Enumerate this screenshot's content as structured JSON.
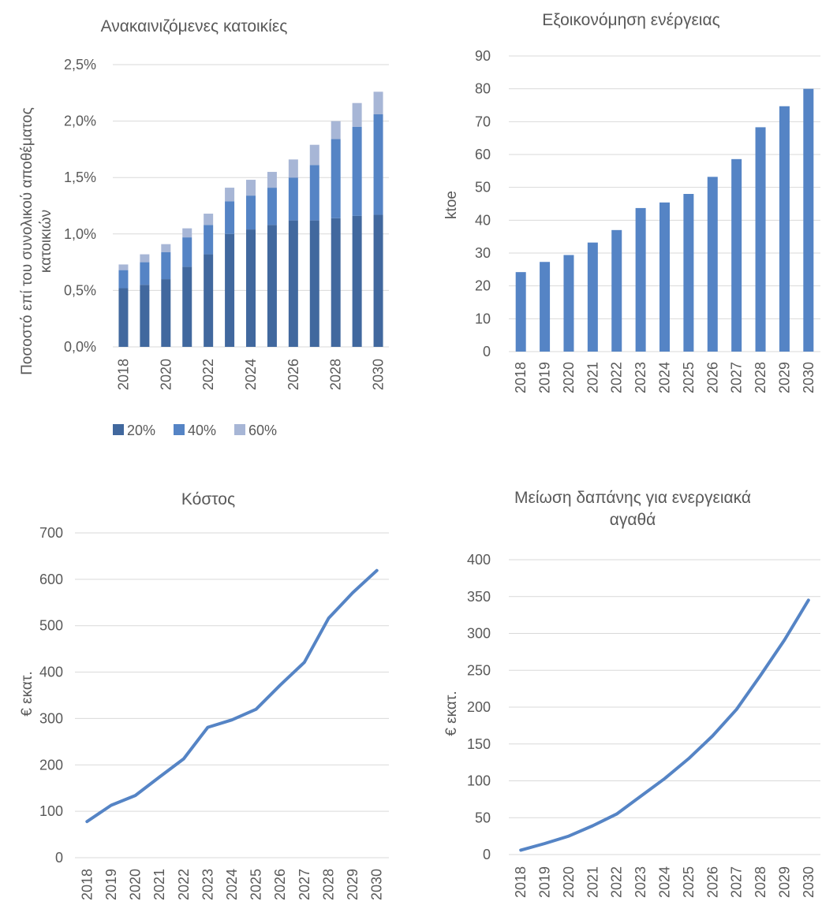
{
  "chart_data": [
    {
      "type": "bar",
      "stacked": true,
      "title": "Ανακαινιζόμενες κατοικίες",
      "xlabel": "",
      "ylabel": "Ποσοστό επί του συνολικού αποθέματος κατοικιών",
      "ylabel_lines": [
        "Ποσοστό επί του συνολικού αποθέματος",
        "κατοικιών"
      ],
      "categories": [
        "2018",
        "2019",
        "2020",
        "2021",
        "2022",
        "2023",
        "2024",
        "2025",
        "2026",
        "2027",
        "2028",
        "2029",
        "2030"
      ],
      "x_tick_labels": [
        "2018",
        "",
        "2020",
        "",
        "2022",
        "",
        "2024",
        "",
        "2026",
        "",
        "2028",
        "",
        "2030"
      ],
      "ylim": [
        0,
        2.5
      ],
      "y_ticks": [
        0,
        0.5,
        1.0,
        1.5,
        2.0,
        2.5
      ],
      "y_tick_labels": [
        "0,0%",
        "0,5%",
        "1,0%",
        "1,5%",
        "2,0%",
        "2,5%"
      ],
      "grid": true,
      "legend_position": "bottom-left",
      "series": [
        {
          "name": "20%",
          "color": "#41689e",
          "values": [
            0.52,
            0.55,
            0.6,
            0.71,
            0.82,
            1.0,
            1.04,
            1.08,
            1.12,
            1.12,
            1.14,
            1.16,
            1.17
          ]
        },
        {
          "name": "40%",
          "color": "#5584c5",
          "values": [
            0.16,
            0.2,
            0.24,
            0.26,
            0.26,
            0.29,
            0.3,
            0.33,
            0.38,
            0.49,
            0.7,
            0.79,
            0.89
          ]
        },
        {
          "name": "60%",
          "color": "#a7b6d6",
          "values": [
            0.05,
            0.07,
            0.07,
            0.08,
            0.1,
            0.12,
            0.14,
            0.14,
            0.16,
            0.18,
            0.16,
            0.21,
            0.2
          ]
        }
      ]
    },
    {
      "type": "bar",
      "title": "Εξοικονόμηση ενέργειας",
      "xlabel": "",
      "ylabel": "ktoe",
      "categories": [
        "2018",
        "2019",
        "2020",
        "2021",
        "2022",
        "2023",
        "2024",
        "2025",
        "2026",
        "2027",
        "2028",
        "2029",
        "2030"
      ],
      "ylim": [
        0,
        90
      ],
      "y_ticks": [
        0,
        10,
        20,
        30,
        40,
        50,
        60,
        70,
        80,
        90
      ],
      "y_tick_labels": [
        "0",
        "10",
        "20",
        "30",
        "40",
        "50",
        "60",
        "70",
        "80",
        "90"
      ],
      "grid": true,
      "series": [
        {
          "name": "",
          "color": "#5584c5",
          "values": [
            24.2,
            27.3,
            29.4,
            33.2,
            37.0,
            43.7,
            45.4,
            48.0,
            53.2,
            58.6,
            68.3,
            74.7,
            80.0
          ]
        }
      ]
    },
    {
      "type": "line",
      "title": "Κόστος",
      "xlabel": "",
      "ylabel": "€ εκατ.",
      "categories": [
        "2018",
        "2019",
        "2020",
        "2021",
        "2022",
        "2023",
        "2024",
        "2025",
        "2026",
        "2027",
        "2028",
        "2029",
        "2030"
      ],
      "ylim": [
        0,
        700
      ],
      "y_ticks": [
        0,
        100,
        200,
        300,
        400,
        500,
        600,
        700
      ],
      "y_tick_labels": [
        "0",
        "100",
        "200",
        "300",
        "400",
        "500",
        "600",
        "700"
      ],
      "grid": true,
      "series": [
        {
          "name": "",
          "color": "#5584c5",
          "values": [
            78,
            113,
            134,
            174,
            213,
            281,
            297,
            320,
            372,
            421,
            516,
            571,
            619
          ]
        }
      ]
    },
    {
      "type": "line",
      "title": "Μείωση δαπάνης για ενεργειακά αγαθά",
      "title_lines": [
        "Μείωση δαπάνης για ενεργειακά",
        "αγαθά"
      ],
      "xlabel": "",
      "ylabel": "€ εκατ.",
      "categories": [
        "2018",
        "2019",
        "2020",
        "2021",
        "2022",
        "2023",
        "2024",
        "2025",
        "2026",
        "2027",
        "2028",
        "2029",
        "2030"
      ],
      "ylim": [
        0,
        400
      ],
      "y_ticks": [
        0,
        50,
        100,
        150,
        200,
        250,
        300,
        350,
        400
      ],
      "y_tick_labels": [
        "0",
        "50",
        "100",
        "150",
        "200",
        "250",
        "300",
        "350",
        "400"
      ],
      "grid": true,
      "series": [
        {
          "name": "",
          "color": "#5584c5",
          "values": [
            6,
            15,
            25,
            39,
            55,
            79,
            103,
            130,
            161,
            197,
            243,
            291,
            345
          ]
        }
      ]
    }
  ]
}
